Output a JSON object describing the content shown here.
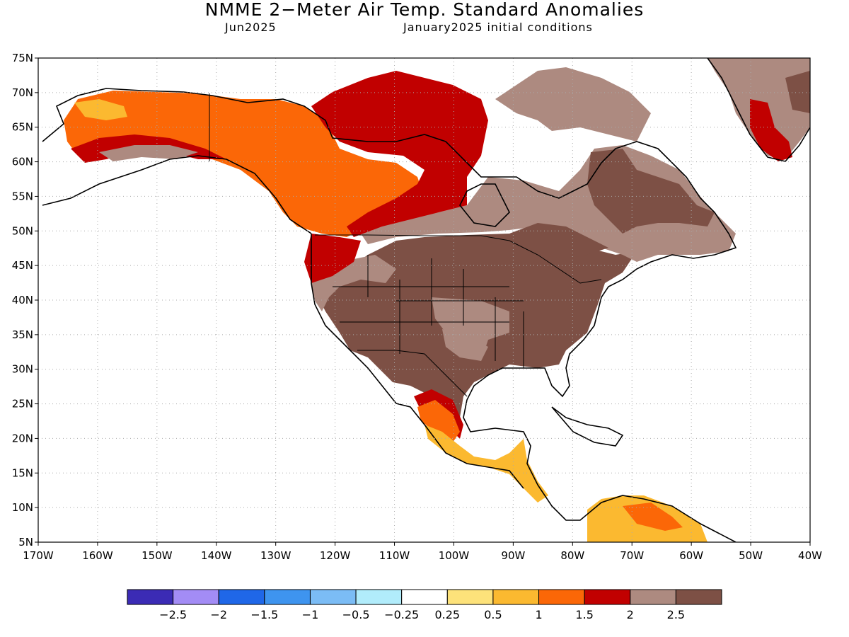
{
  "title": "NMME 2−Meter Air Temp. Standard Anomalies",
  "subtitle_left": "Jun2025",
  "subtitle_right": "January2025 initial conditions",
  "map": {
    "lon_range": [
      -170,
      -40
    ],
    "lat_range": [
      5,
      75
    ],
    "grid": true,
    "lat_ticks": [
      "75N",
      "70N",
      "65N",
      "60N",
      "55N",
      "50N",
      "45N",
      "40N",
      "35N",
      "30N",
      "25N",
      "20N",
      "15N",
      "10N",
      "5N"
    ],
    "lon_ticks": [
      "170W",
      "160W",
      "150W",
      "140W",
      "130W",
      "120W",
      "110W",
      "100W",
      "90W",
      "80W",
      "70W",
      "60W",
      "50W",
      "40W"
    ]
  },
  "colorbar": {
    "colors": [
      "#3b2bb5",
      "#a38cf5",
      "#1f67e8",
      "#3e94ef",
      "#7bbcf5",
      "#b1ecfb",
      "#ffffff",
      "#fde27a",
      "#fbb930",
      "#fb6707",
      "#c10000",
      "#ad8a80",
      "#7d5045"
    ],
    "labels": [
      "−2.5",
      "−2",
      "−1.5",
      "−1",
      "−0.5",
      "−0.25",
      "0.25",
      "0.5",
      "1",
      "1.5",
      "2",
      "2.5"
    ]
  },
  "colors": {
    "warm_1": "#fde27a",
    "warm_2": "#fbb930",
    "warm_3": "#fb6707",
    "warm_4": "#c10000",
    "brown_light": "#ad8a80",
    "brown_dark": "#7d5045",
    "coast": "#000000"
  }
}
